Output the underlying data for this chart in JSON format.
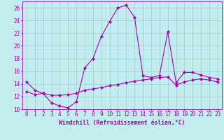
{
  "xlabel": "Windchill (Refroidissement éolien,°C)",
  "background_color": "#c2ecee",
  "line_color": "#aa00aa",
  "grid_color": "#9ed4d8",
  "x_line1": [
    0,
    1,
    2,
    3,
    4,
    5,
    6,
    7,
    8,
    9,
    10,
    11,
    12,
    13,
    14,
    15,
    16,
    17,
    18,
    19,
    20,
    21,
    22,
    23
  ],
  "y_line1": [
    14.3,
    13.0,
    12.5,
    11.0,
    10.5,
    10.2,
    11.2,
    16.5,
    18.0,
    21.5,
    23.8,
    26.0,
    26.4,
    24.5,
    15.3,
    15.0,
    15.3,
    22.2,
    14.2,
    15.8,
    15.8,
    15.4,
    15.0,
    14.8
  ],
  "x_line2": [
    0,
    1,
    2,
    3,
    4,
    5,
    6,
    7,
    8,
    9,
    10,
    11,
    12,
    13,
    14,
    15,
    16,
    17,
    18,
    19,
    20,
    21,
    22,
    23
  ],
  "y_line2": [
    12.8,
    12.3,
    12.5,
    12.2,
    12.2,
    12.3,
    12.5,
    13.0,
    13.2,
    13.4,
    13.7,
    13.9,
    14.2,
    14.4,
    14.6,
    14.8,
    15.0,
    15.1,
    13.8,
    14.3,
    14.6,
    14.8,
    14.6,
    14.3
  ],
  "ylim": [
    10,
    27
  ],
  "xlim": [
    -0.5,
    23.5
  ],
  "yticks": [
    10,
    12,
    14,
    16,
    18,
    20,
    22,
    24,
    26
  ],
  "xticks": [
    0,
    1,
    2,
    3,
    4,
    5,
    6,
    7,
    8,
    9,
    10,
    11,
    12,
    13,
    14,
    15,
    16,
    17,
    18,
    19,
    20,
    21,
    22,
    23
  ],
  "xlabel_fontsize": 5.8,
  "tick_fontsize": 5.5,
  "marker_size": 2.2,
  "line_width": 0.8
}
